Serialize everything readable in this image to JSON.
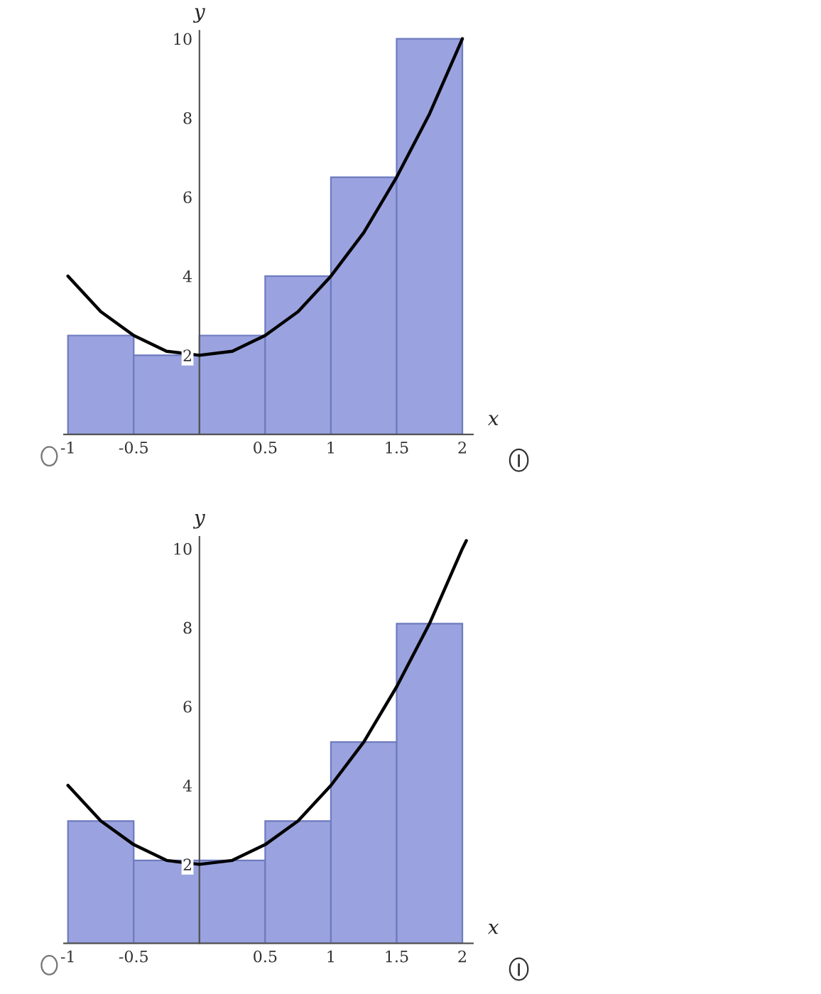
{
  "chart_data": [
    {
      "type": "histogram",
      "xlabel": "x",
      "ylabel": "y",
      "bins": [
        -1,
        -0.5,
        0,
        0.5,
        1,
        1.5,
        2
      ],
      "values": [
        2.5,
        2,
        2.5,
        4,
        6.5,
        10
      ],
      "color": "#9aa3df",
      "series": [
        {
          "type": "line",
          "color": "#000000",
          "x": [
            -1,
            -0.75,
            -0.5,
            -0.25,
            0,
            0.25,
            0.5,
            0.75,
            1,
            1.25,
            1.5,
            1.75,
            2
          ],
          "values": [
            4,
            3.1,
            2.5,
            2.1,
            2,
            2.1,
            2.5,
            3.1,
            4,
            5.1,
            6.5,
            8.1,
            10
          ]
        }
      ],
      "xlim": [
        -1.03,
        2.08
      ],
      "ylim": [
        0,
        10.2
      ],
      "xticks": [
        -1,
        -0.5,
        {
          "value": 0,
          "label": null
        },
        0.5,
        1,
        1.5,
        2
      ],
      "yticks": [
        2,
        4,
        6,
        8,
        10
      ],
      "grid": false,
      "legend": false
    },
    {
      "type": "histogram",
      "xlabel": "x",
      "ylabel": "y",
      "bins": [
        -1,
        -0.5,
        0,
        0.5,
        1,
        1.5,
        2
      ],
      "values": [
        3.1,
        2.1,
        2.1,
        3.1,
        5.1,
        8.1
      ],
      "color": "#9aa3df",
      "series": [
        {
          "type": "line",
          "color": "#000000",
          "x": [
            -1,
            -0.75,
            -0.5,
            -0.25,
            0,
            0.25,
            0.5,
            0.75,
            1,
            1.25,
            1.5,
            1.75,
            2,
            2.03
          ],
          "values": [
            4,
            3.1,
            2.5,
            2.1,
            2,
            2.1,
            2.5,
            3.1,
            4,
            5.1,
            6.5,
            8.1,
            10,
            10.2
          ]
        }
      ],
      "xlim": [
        -1.03,
        2.08
      ],
      "ylim": [
        0,
        10.3
      ],
      "xticks": [
        -1,
        -0.5,
        {
          "value": 0,
          "label": null
        },
        0.5,
        1,
        1.5,
        2
      ],
      "yticks": [
        2,
        4,
        6,
        8,
        10
      ],
      "grid": false,
      "legend": false
    }
  ]
}
